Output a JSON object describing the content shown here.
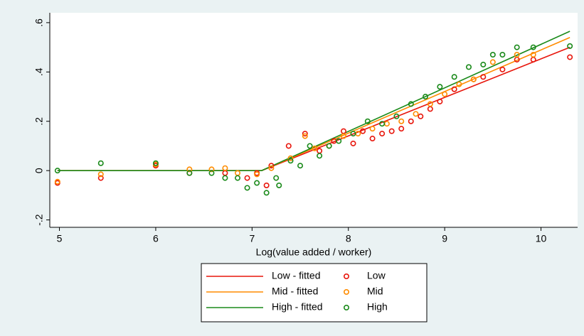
{
  "chart_data": {
    "type": "scatter",
    "x_label": "Log(value added / worker)",
    "xlim": [
      4.9,
      10.38
    ],
    "ylim": [
      -0.23,
      0.64
    ],
    "xticks": [
      5,
      6,
      7,
      8,
      9,
      10
    ],
    "yticks": [
      {
        "value": -0.2,
        "label": "-.2"
      },
      0,
      {
        "value": 0.2,
        "label": ".2"
      },
      {
        "value": 0.4,
        "label": ".4"
      },
      {
        "value": 0.6,
        "label": ".6"
      }
    ],
    "grid": false,
    "legend_position": "bottom",
    "series": [
      {
        "name": "Low - fitted",
        "type": "line",
        "color": "#e8160c",
        "x": [
          4.98,
          7.1,
          10.3
        ],
        "values": [
          0,
          0,
          0.5
        ]
      },
      {
        "name": "Mid - fitted",
        "type": "line",
        "color": "#ff8c00",
        "x": [
          4.98,
          7.1,
          10.3
        ],
        "values": [
          0,
          0,
          0.54
        ]
      },
      {
        "name": "High - fitted",
        "type": "line",
        "color": "#1a8a1a",
        "x": [
          4.98,
          7.1,
          10.3
        ],
        "values": [
          0,
          0,
          0.565
        ]
      },
      {
        "name": "Low",
        "type": "scatter",
        "color": "#e8160c",
        "x": [
          4.98,
          5.43,
          6.0,
          6.35,
          6.72,
          6.95,
          7.05,
          7.15,
          7.2,
          7.38,
          7.55,
          7.7,
          7.85,
          7.95,
          8.05,
          8.15,
          8.25,
          8.35,
          8.45,
          8.55,
          8.65,
          8.75,
          8.85,
          8.95,
          9.1,
          9.3,
          9.4,
          9.6,
          9.75,
          9.92,
          10.3
        ],
        "values": [
          -0.05,
          -0.03,
          0.02,
          -0.01,
          -0.01,
          -0.03,
          -0.01,
          -0.06,
          0.02,
          0.1,
          0.15,
          0.08,
          0.12,
          0.16,
          0.11,
          0.16,
          0.13,
          0.15,
          0.16,
          0.17,
          0.2,
          0.22,
          0.25,
          0.28,
          0.33,
          0.37,
          0.38,
          0.41,
          0.45,
          0.45,
          0.46
        ]
      },
      {
        "name": "Mid",
        "type": "scatter",
        "color": "#ff8c00",
        "x": [
          4.98,
          5.43,
          6.0,
          6.35,
          6.58,
          6.72,
          6.85,
          7.05,
          7.2,
          7.4,
          7.55,
          7.65,
          7.8,
          7.95,
          8.1,
          8.25,
          8.4,
          8.55,
          8.7,
          8.85,
          9.0,
          9.15,
          9.3,
          9.5,
          9.75,
          9.92
        ],
        "values": [
          -0.045,
          -0.015,
          0.025,
          0.005,
          0.005,
          0.01,
          -0.01,
          -0.015,
          0.01,
          0.05,
          0.14,
          0.09,
          0.1,
          0.14,
          0.15,
          0.17,
          0.19,
          0.2,
          0.23,
          0.27,
          0.31,
          0.35,
          0.37,
          0.44,
          0.47,
          0.47
        ]
      },
      {
        "name": "High",
        "type": "scatter",
        "color": "#1a8a1a",
        "x": [
          4.98,
          5.43,
          6.0,
          6.35,
          6.58,
          6.72,
          6.85,
          6.95,
          7.05,
          7.15,
          7.25,
          7.28,
          7.4,
          7.5,
          7.6,
          7.7,
          7.8,
          7.9,
          8.05,
          8.2,
          8.35,
          8.5,
          8.65,
          8.8,
          8.95,
          9.1,
          9.25,
          9.4,
          9.5,
          9.6,
          9.75,
          9.92,
          10.3
        ],
        "values": [
          0.0,
          0.03,
          0.03,
          -0.01,
          -0.01,
          -0.03,
          -0.03,
          -0.07,
          -0.05,
          -0.09,
          -0.03,
          -0.06,
          0.04,
          0.02,
          0.1,
          0.06,
          0.1,
          0.12,
          0.15,
          0.2,
          0.19,
          0.22,
          0.27,
          0.3,
          0.34,
          0.38,
          0.42,
          0.43,
          0.47,
          0.47,
          0.5,
          0.5,
          0.505
        ]
      }
    ]
  }
}
